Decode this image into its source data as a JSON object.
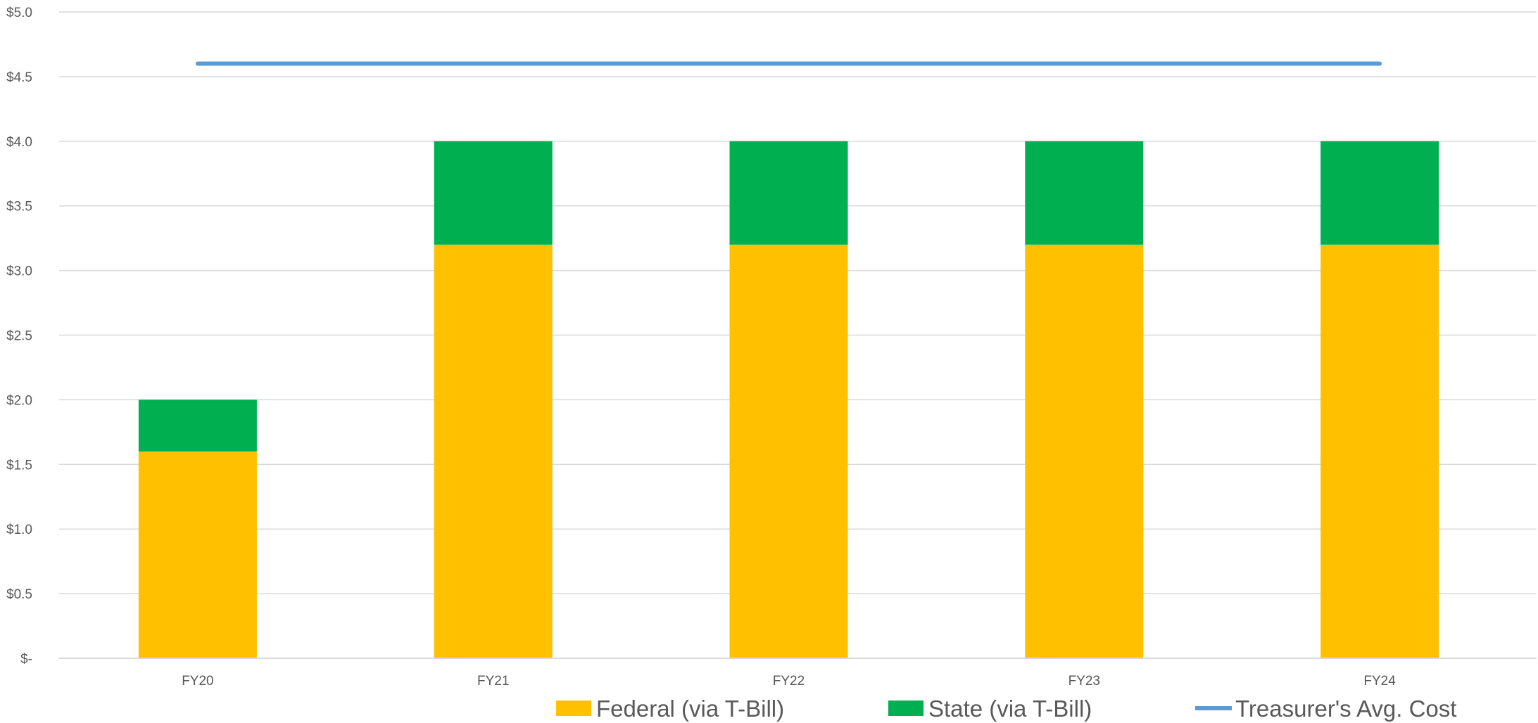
{
  "chart_data": {
    "type": "bar",
    "stacked": true,
    "categories": [
      "FY20",
      "FY21",
      "FY22",
      "FY23",
      "FY24"
    ],
    "series": [
      {
        "name": "Federal (via T-Bill)",
        "kind": "bar",
        "color": "#FFC000",
        "values": [
          1.6,
          3.2,
          3.2,
          3.2,
          3.2
        ]
      },
      {
        "name": "State (via T-Bill)",
        "kind": "bar",
        "color": "#00B050",
        "values": [
          0.4,
          0.8,
          0.8,
          0.8,
          0.8
        ]
      },
      {
        "name": "Treasurer's Avg. Cost",
        "kind": "line",
        "color": "#5B9BD5",
        "values": [
          4.6,
          4.6,
          4.6,
          4.6,
          4.6
        ]
      }
    ],
    "yticks": [
      {
        "value": 0,
        "label": "$-"
      },
      {
        "value": 0.5,
        "label": "$0.5"
      },
      {
        "value": 1.0,
        "label": "$1.0"
      },
      {
        "value": 1.5,
        "label": "$1.5"
      },
      {
        "value": 2.0,
        "label": "$2.0"
      },
      {
        "value": 2.5,
        "label": "$2.5"
      },
      {
        "value": 3.0,
        "label": "$3.0"
      },
      {
        "value": 3.5,
        "label": "$3.5"
      },
      {
        "value": 4.0,
        "label": "$4.0"
      },
      {
        "value": 4.5,
        "label": "$4.5"
      },
      {
        "value": 5.0,
        "label": "$5.0"
      }
    ],
    "ylim": [
      0,
      5
    ],
    "grid": true,
    "legend_position": "bottom",
    "title": "",
    "xlabel": "",
    "ylabel": ""
  }
}
